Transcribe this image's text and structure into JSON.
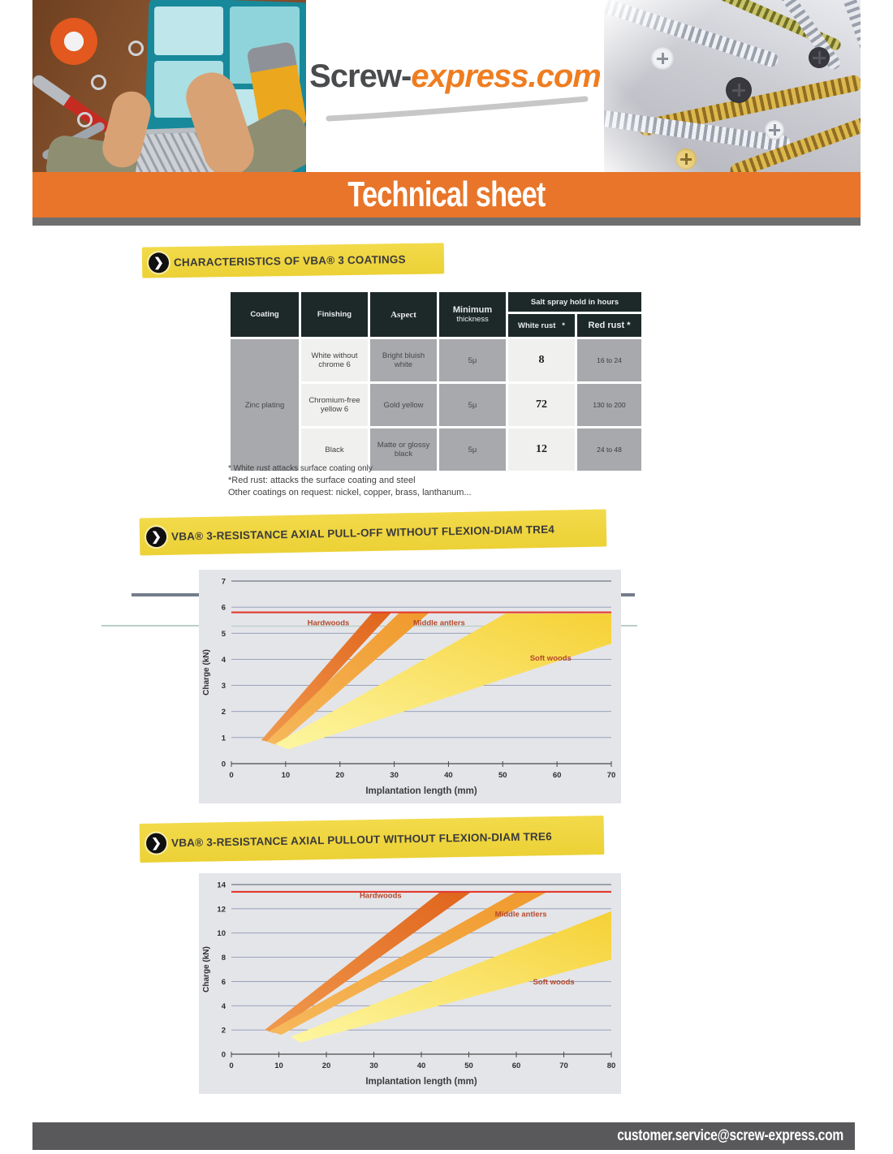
{
  "icons": {
    "chevron_right": "❯"
  },
  "colors": {
    "accent_orange": "#e8752a",
    "highlight_yellow": "#f0d642",
    "footer_gray": "#59595b",
    "ref_line_red": "#e23a2e"
  },
  "logo": {
    "part1": "Screw-",
    "part2": "express.com"
  },
  "banner": {
    "title": "Technical sheet"
  },
  "sections": [
    {
      "title": "CHARACTERISTICS OF VBA® 3 COATINGS"
    },
    {
      "title": "VBA® 3-RESISTANCE AXIAL PULL-OFF WITHOUT FLEXION-DIAM TRE4"
    },
    {
      "title": "VBA® 3-RESISTANCE AXIAL PULLOUT WITHOUT FLEXION-DIAM TRE6"
    }
  ],
  "table": {
    "headers": {
      "coating": "Coating",
      "finishing": "Finishing",
      "aspect": "Aspect",
      "min1": "Minimum",
      "min2": "thickness",
      "salt_spray": "Salt spray hold in hours",
      "white_rust": "White rust",
      "white_rust_star": "*",
      "red_rust": "Red rust *"
    },
    "coating_label": "Zinc plating",
    "rows": [
      {
        "finishing": "White without chrome 6",
        "aspect": "Bright bluish white",
        "thickness": "5μ",
        "white_rust": "8",
        "red_rust": "16 to 24"
      },
      {
        "finishing": "Chromium-free yellow 6",
        "aspect": "Gold yellow",
        "thickness": "5μ",
        "white_rust": "72",
        "red_rust": "130 to 200"
      },
      {
        "finishing": "Black",
        "aspect": "Matte or glossy black",
        "thickness": "5μ",
        "white_rust": "12",
        "red_rust": "24 to 48"
      }
    ],
    "footnotes": [
      "* White rust attacks surface coating only",
      "*Red rust: attacks the surface coating and steel",
      "Other coatings on request: nickel, copper, brass, lanthanum..."
    ]
  },
  "footer": {
    "email": "customer.service@screw-express.com"
  },
  "chart_data": [
    {
      "type": "area",
      "title": "VBA® 3-RESISTANCE AXIAL PULL-OFF WITHOUT FLEXION-DIAM TRE4",
      "xlabel": "Implantation length (mm)",
      "ylabel": "Charge (kN)",
      "xlim": [
        0,
        70
      ],
      "ylim": [
        0,
        7
      ],
      "xticks": [
        0,
        10,
        20,
        30,
        40,
        50,
        60,
        70
      ],
      "yticks": [
        0,
        1,
        2,
        3,
        4,
        5,
        6,
        7
      ],
      "grid": true,
      "ref_line_y": 5.8,
      "extra_gridlines": [
        5.27
      ],
      "series": [
        {
          "name": "Hardwoods",
          "colors": [
            "#f09a4e",
            "#e0641c"
          ],
          "polygon": [
            [
              5.5,
              0.9
            ],
            [
              26,
              5.8
            ],
            [
              29.5,
              5.8
            ],
            [
              7.5,
              0.8
            ]
          ],
          "label_xy": [
            14,
            5.3
          ]
        },
        {
          "name": "Middle antlers",
          "colors": [
            "#f6b95c",
            "#f0992c"
          ],
          "polygon": [
            [
              6.5,
              0.85
            ],
            [
              31,
              5.8
            ],
            [
              36.5,
              5.8
            ],
            [
              8.5,
              0.7
            ]
          ],
          "label_xy": [
            33.5,
            5.3
          ]
        },
        {
          "name": "Soft woods",
          "colors": [
            "#fdf6a2",
            "#f6d136"
          ],
          "polygon": [
            [
              8,
              0.75
            ],
            [
              50.5,
              5.75
            ],
            [
              70,
              5.75
            ],
            [
              70,
              4.6
            ],
            [
              10.5,
              0.55
            ]
          ],
          "label_xy": [
            55,
            3.95
          ]
        }
      ]
    },
    {
      "type": "area",
      "title": "VBA® 3-RESISTANCE AXIAL PULLOUT WITHOUT FLEXION-DIAM TRE6",
      "xlabel": "Implantation length (mm)",
      "ylabel": "Charge (kN)",
      "xlim": [
        0,
        80
      ],
      "ylim": [
        0,
        14
      ],
      "xticks": [
        0,
        10,
        20,
        30,
        40,
        50,
        60,
        70,
        80
      ],
      "yticks": [
        0,
        2,
        4,
        6,
        8,
        10,
        12,
        14
      ],
      "grid": true,
      "ref_line_y": 13.4,
      "extra_gridlines": [],
      "series": [
        {
          "name": "Hardwoods",
          "colors": [
            "#f09a4e",
            "#e0641c"
          ],
          "polygon": [
            [
              7,
              2.0
            ],
            [
              44,
              13.4
            ],
            [
              50.5,
              13.4
            ],
            [
              9,
              1.75
            ]
          ],
          "label_xy": [
            27,
            12.9
          ]
        },
        {
          "name": "Middle antlers",
          "colors": [
            "#f6b95c",
            "#f0992c"
          ],
          "polygon": [
            [
              8,
              1.9
            ],
            [
              60,
              13.4
            ],
            [
              66.5,
              13.4
            ],
            [
              10.5,
              1.6
            ]
          ],
          "label_xy": [
            55.5,
            11.35
          ]
        },
        {
          "name": "Soft woods",
          "colors": [
            "#fdf6a2",
            "#f6d136"
          ],
          "polygon": [
            [
              12.5,
              1.45
            ],
            [
              80,
              11.8
            ],
            [
              80,
              7.8
            ],
            [
              14.5,
              0.95
            ]
          ],
          "label_xy": [
            63.5,
            5.75
          ]
        }
      ]
    }
  ]
}
